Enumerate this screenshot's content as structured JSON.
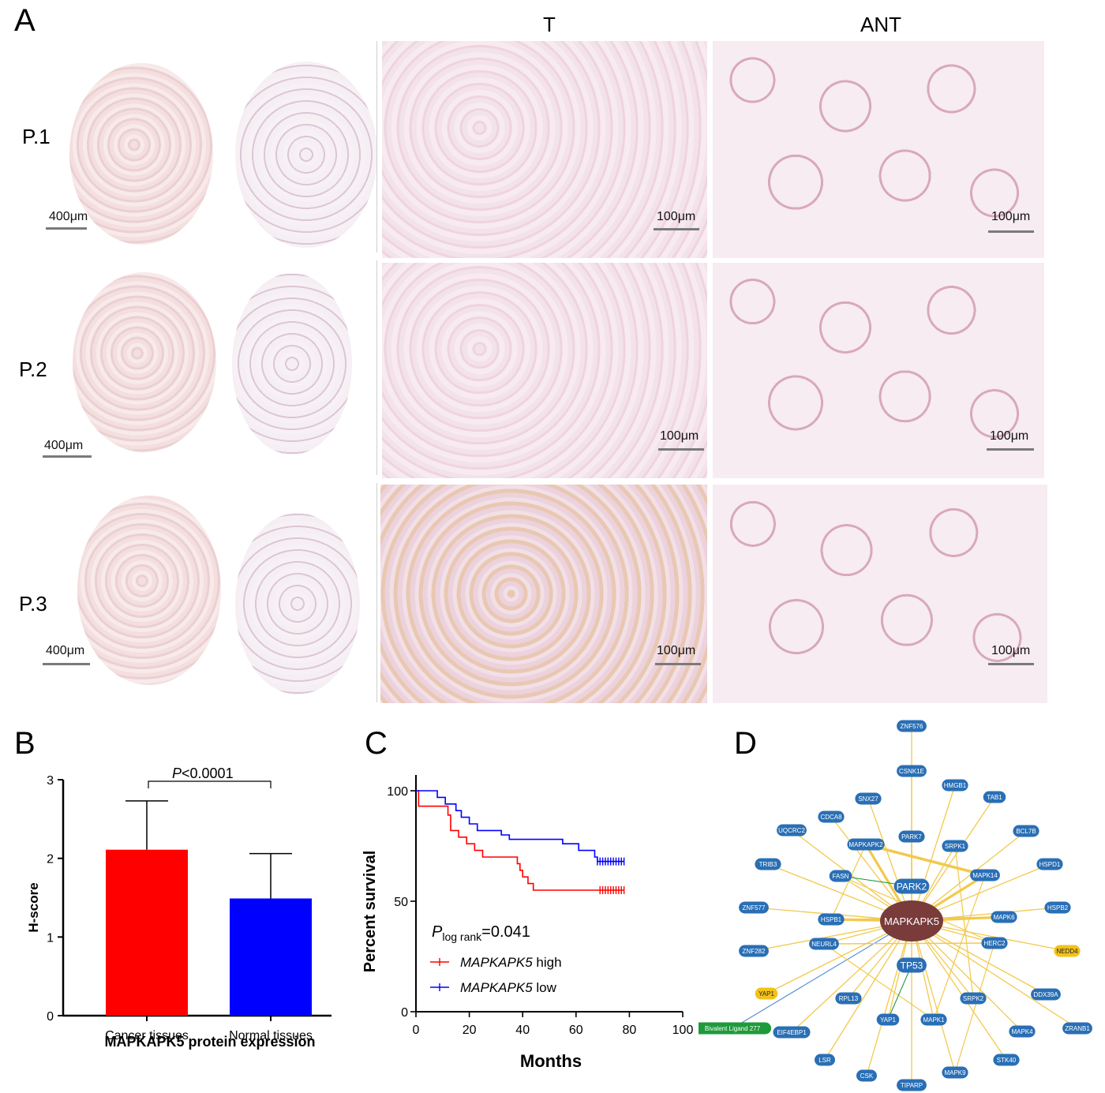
{
  "panel_labels": {
    "a": "A",
    "b": "B",
    "c": "C",
    "d": "D"
  },
  "panel_a": {
    "col_headers": {
      "t": "T",
      "ant": "ANT"
    },
    "rows": [
      {
        "label": "P.1",
        "scale_core": "400μm",
        "scale_t": "100μm",
        "scale_ant": "100μm"
      },
      {
        "label": "P.2",
        "scale_core": "400μm",
        "scale_t": "100μm",
        "scale_ant": "100μm"
      },
      {
        "label": "P.3",
        "scale_core": "400μm",
        "scale_t": "100μm",
        "scale_ant": "100μm"
      }
    ]
  },
  "chart_data": [
    {
      "type": "bar",
      "panel": "B",
      "categories": [
        "Cancer tissues",
        "Normal tissues"
      ],
      "values": [
        2.11,
        1.49
      ],
      "errors": [
        0.62,
        0.57
      ],
      "colors": [
        "#ff0000",
        "#0000ff"
      ],
      "ylabel": "H-score",
      "xlabel": "MAPKAPK5 protein expression",
      "ylim": [
        0,
        3
      ],
      "yticks": [
        0,
        1,
        2,
        3
      ],
      "annotation": {
        "italic": "P",
        "text": "<0.0001"
      }
    },
    {
      "type": "line",
      "panel": "C",
      "ylabel": "Percent survival",
      "xlabel": "Months",
      "xlim": [
        0,
        100
      ],
      "ylim": [
        0,
        100
      ],
      "xticks": [
        0,
        20,
        40,
        60,
        80,
        100
      ],
      "yticks": [
        0,
        50,
        100
      ],
      "annotation": {
        "italic": "P",
        "sub": "log rank",
        "text": "=0.041"
      },
      "series": [
        {
          "name": "MAPKAPK5 high",
          "legend_italic": "MAPKAPK5",
          "legend_rest": " high",
          "color": "#ff0000",
          "steps": [
            [
              0,
              100
            ],
            [
              1,
              93
            ],
            [
              6,
              93
            ],
            [
              12,
              89
            ],
            [
              13,
              82
            ],
            [
              16,
              79
            ],
            [
              19,
              76
            ],
            [
              22,
              73
            ],
            [
              25,
              70
            ],
            [
              38,
              67
            ],
            [
              39,
              64
            ],
            [
              40,
              61
            ],
            [
              42,
              58
            ],
            [
              44,
              55
            ],
            [
              78,
              55
            ]
          ],
          "censored": [
            69,
            70,
            71,
            72,
            73,
            74,
            75,
            76,
            77,
            78
          ]
        },
        {
          "name": "MAPKAPK5 low",
          "legend_italic": "MAPKAPK5",
          "legend_rest": " low",
          "color": "#0000ff",
          "steps": [
            [
              0,
              100
            ],
            [
              7,
              100
            ],
            [
              8,
              97
            ],
            [
              11,
              94
            ],
            [
              15,
              91
            ],
            [
              17,
              88
            ],
            [
              20,
              85
            ],
            [
              23,
              82
            ],
            [
              32,
              80
            ],
            [
              35,
              78
            ],
            [
              55,
              76
            ],
            [
              61,
              73
            ],
            [
              67,
              70
            ],
            [
              68,
              68
            ],
            [
              78,
              68
            ]
          ],
          "censored": [
            68,
            69,
            70,
            71,
            72,
            73,
            74,
            75,
            76,
            77,
            78
          ]
        }
      ]
    }
  ],
  "network": {
    "center": "MAPKAPK5",
    "hubs": [
      "PARK2",
      "TP53"
    ],
    "nodes": [
      {
        "id": "ZNF576",
        "color": "#2a6fb5"
      },
      {
        "id": "CSNK1E",
        "color": "#2a6fb5"
      },
      {
        "id": "SNX27",
        "color": "#2a6fb5"
      },
      {
        "id": "HMGB1",
        "color": "#2a6fb5"
      },
      {
        "id": "CDCA8",
        "color": "#2a6fb5"
      },
      {
        "id": "TAB1",
        "color": "#2a6fb5"
      },
      {
        "id": "UQCRC2",
        "color": "#2a6fb5"
      },
      {
        "id": "MAPKAPK2",
        "color": "#2a6fb5"
      },
      {
        "id": "PARK7",
        "color": "#2a6fb5"
      },
      {
        "id": "SRPK1",
        "color": "#2a6fb5"
      },
      {
        "id": "BCL7B",
        "color": "#2a6fb5"
      },
      {
        "id": "TRIB3",
        "color": "#2a6fb5"
      },
      {
        "id": "FASN",
        "color": "#2a6fb5"
      },
      {
        "id": "MAPK14",
        "color": "#2a6fb5"
      },
      {
        "id": "HSPD1",
        "color": "#2a6fb5"
      },
      {
        "id": "ZNF577",
        "color": "#2a6fb5"
      },
      {
        "id": "HSPB1",
        "color": "#2a6fb5"
      },
      {
        "id": "MAPK6",
        "color": "#2a6fb5"
      },
      {
        "id": "HSPB2",
        "color": "#2a6fb5"
      },
      {
        "id": "ZNF282",
        "color": "#2a6fb5"
      },
      {
        "id": "NEURL4",
        "color": "#2a6fb5"
      },
      {
        "id": "HERC2",
        "color": "#2a6fb5"
      },
      {
        "id": "NEDD4",
        "color": "#f2c21a"
      },
      {
        "id": "YAP1",
        "color": "#f2c21a"
      },
      {
        "id": "RPL13",
        "color": "#2a6fb5"
      },
      {
        "id": "SRPK2",
        "color": "#2a6fb5"
      },
      {
        "id": "DDX39A",
        "color": "#2a6fb5"
      },
      {
        "id": "Bivalent Ligand 277",
        "color": "#1f9a3a"
      },
      {
        "id": "EIF4EBP1",
        "color": "#2a6fb5"
      },
      {
        "id": "YAP1",
        "color": "#2a6fb5"
      },
      {
        "id": "MAPK1",
        "color": "#2a6fb5"
      },
      {
        "id": "MAPK4",
        "color": "#2a6fb5"
      },
      {
        "id": "ZRANB1",
        "color": "#2a6fb5"
      },
      {
        "id": "LSR",
        "color": "#2a6fb5"
      },
      {
        "id": "STK40",
        "color": "#2a6fb5"
      },
      {
        "id": "CSK",
        "color": "#2a6fb5"
      },
      {
        "id": "TIPARP",
        "color": "#2a6fb5"
      },
      {
        "id": "MAPK9",
        "color": "#2a6fb5"
      }
    ],
    "edge_color": "#f2c94c",
    "center_color": "#7a3b3b"
  }
}
